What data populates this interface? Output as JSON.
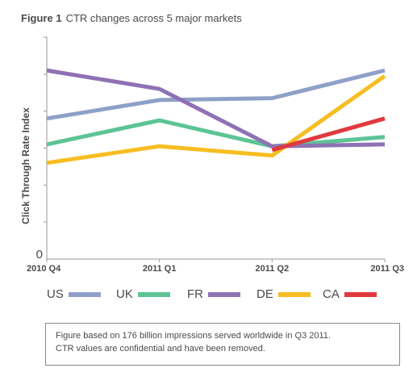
{
  "figure": {
    "label": "Figure 1",
    "title": "CTR changes across 5 major markets"
  },
  "note": {
    "line1": "Figure based on 176 billion impressions served worldwide in Q3 2011.",
    "line2": "CTR values are confidential and have been removed."
  },
  "chart_data": {
    "type": "line",
    "title": "CTR changes across 5 major markets",
    "xlabel": "",
    "ylabel": "Click Through Rate Index",
    "categories": [
      "2010 Q4",
      "2011 Q1",
      "2011 Q2",
      "2011 Q3"
    ],
    "y_tick_labels": [
      "0"
    ],
    "ylim": [
      0,
      6
    ],
    "grid": false,
    "legend_position": "bottom",
    "series": [
      {
        "name": "US",
        "color": "#8fa0c8",
        "x": [
          "2010 Q4",
          "2011 Q1",
          "2011 Q2",
          "2011 Q3"
        ],
        "values": [
          3.8,
          4.3,
          4.35,
          5.1
        ]
      },
      {
        "name": "UK",
        "color": "#5cc495",
        "x": [
          "2010 Q4",
          "2011 Q1",
          "2011 Q2",
          "2011 Q3"
        ],
        "values": [
          3.1,
          3.75,
          3.05,
          3.3
        ]
      },
      {
        "name": "FR",
        "color": "#8e72b4",
        "x": [
          "2010 Q4",
          "2011 Q1",
          "2011 Q2",
          "2011 Q3"
        ],
        "values": [
          5.1,
          4.6,
          3.05,
          3.1
        ]
      },
      {
        "name": "DE",
        "color": "#f7bd22",
        "x": [
          "2010 Q4",
          "2011 Q1",
          "2011 Q2",
          "2011 Q3"
        ],
        "values": [
          2.6,
          3.05,
          2.8,
          4.95
        ]
      },
      {
        "name": "CA",
        "color": "#e0393e",
        "x": [
          "2011 Q2",
          "2011 Q3"
        ],
        "values": [
          2.95,
          3.8
        ]
      }
    ]
  }
}
